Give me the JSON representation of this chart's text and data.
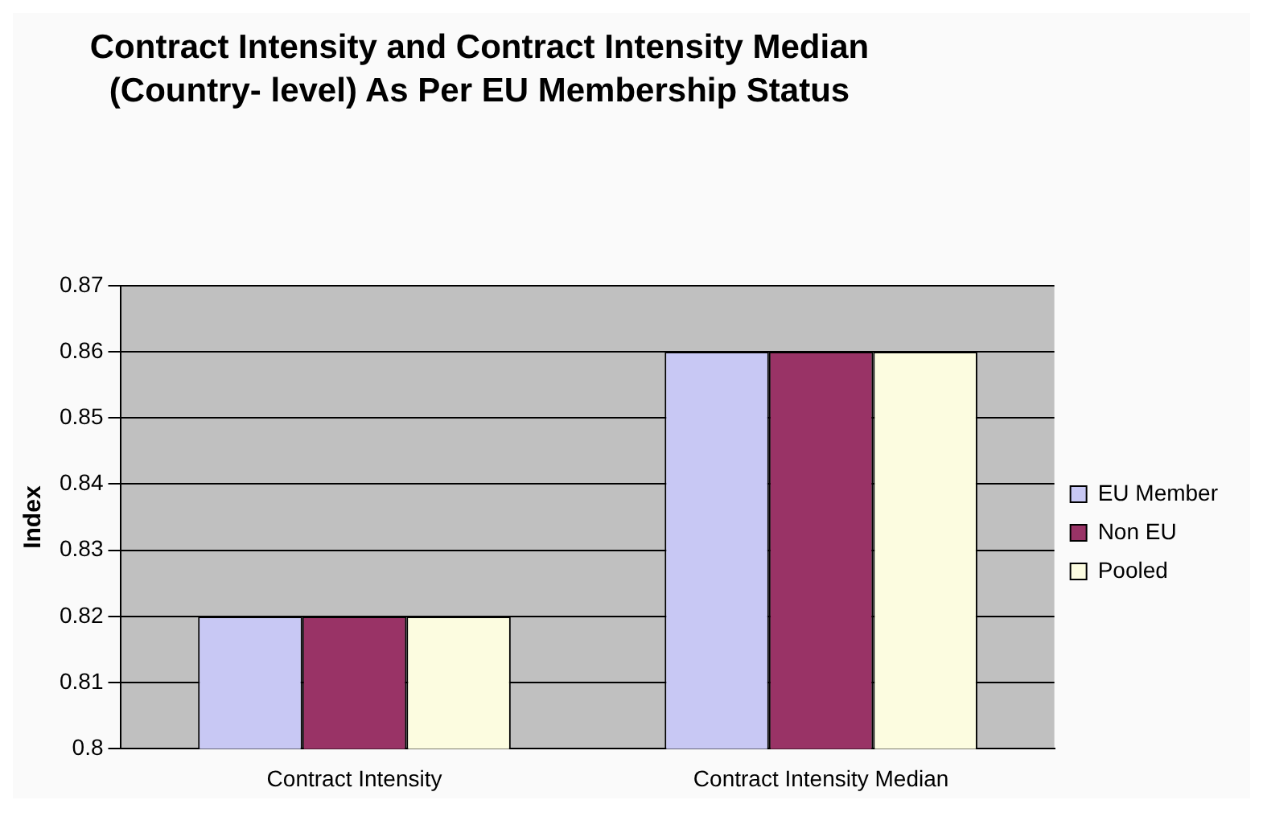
{
  "chart_data": {
    "type": "bar",
    "title": "Contract Intensity and Contract Intensity Median (Country- level) As Per EU Membership Status",
    "ylabel": "Index",
    "categories": [
      "Contract Intensity",
      "Contract Intensity Median"
    ],
    "series": [
      {
        "name": "EU Member",
        "color": "#c8c8f4",
        "values": [
          0.82,
          0.86
        ]
      },
      {
        "name": "Non EU",
        "color": "#993366",
        "values": [
          0.82,
          0.86
        ]
      },
      {
        "name": "Pooled",
        "color": "#fcfce0",
        "values": [
          0.82,
          0.86
        ]
      }
    ],
    "ylim": [
      0.8,
      0.87
    ],
    "yticks": [
      0.8,
      0.81,
      0.82,
      0.83,
      0.84,
      0.85,
      0.86,
      0.87
    ],
    "grid": "y",
    "legend": "right"
  }
}
